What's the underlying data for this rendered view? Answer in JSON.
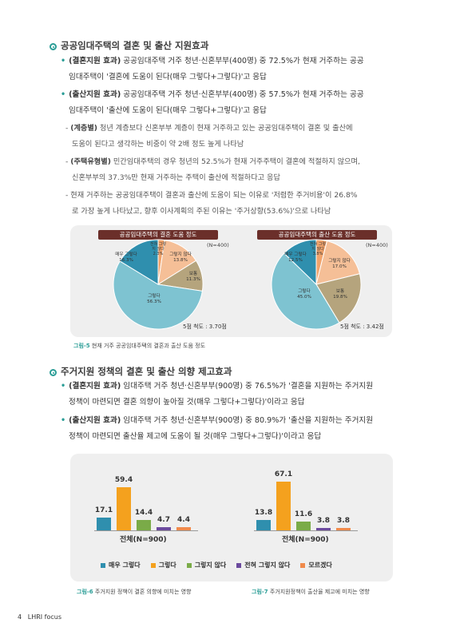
{
  "section1": {
    "title": "공공임대주택의 결혼 및 출산 지원효과",
    "bullets": [
      {
        "head": "(결혼지원 효과)",
        "lines": [
          " 공공임대주택 거주 청년·신혼부부(400명) 중 72.5%가 현재 거주하는 공공",
          "임대주택이 '결혼에 도움이 된다(매우 그렇다+그렇다)'고 응답"
        ]
      },
      {
        "head": "(출산지원 효과)",
        "lines": [
          " 공공임대주택 거주 청년·신혼부부(400명) 중 57.5%가 현재 거주하는 공공",
          "임대주택이 '출산에 도움이 된다(매우 그렇다+그렇다)'고 응답"
        ]
      }
    ],
    "dashes": [
      {
        "head": "(계층별)",
        "lines": [
          " 청년 계층보다 신혼부부 계층이 현재 거주하고 있는 공공임대주택이 결혼 및 출산에",
          "도움이 된다고 생각하는 비중이 약 2배 정도 높게 나타남"
        ]
      },
      {
        "head": "(주택유형별)",
        "lines": [
          " 민간임대주택의 경우 청년의 52.5%가 현재 거주주택이 결혼에 적절하지 않으며,",
          "신혼부부의 37.3%만 현재 거주하는 주택이 출산에 적절하다고 응답"
        ]
      },
      {
        "head": "",
        "lines": [
          "현재 거주하는 공공임대주택이 결혼과 출산에 도움이 되는 이유로 '저렴한 주거비용'이 26.8%",
          "로 가장 높게 나타났고, 향후 이사계획의 주된 이유는 '주거상향(53.6%)'으로 나타남"
        ]
      }
    ]
  },
  "figure5": {
    "caption_num": "그림-5",
    "caption_text": " 현재 거주 공공임대주택의 결혼과 출산 도움 정도",
    "pies": [
      {
        "banner": "공공임대주택의 결혼 도움 정도",
        "n": "(N=400)",
        "scale": "5점 척도 : 3.70점",
        "slices": [
          {
            "name": "전혀 그렇지 않다",
            "value": 2.3,
            "label": "2.3%",
            "color": "#f1a36b"
          },
          {
            "name": "그렇지 않다",
            "value": 13.8,
            "label": "13.8%",
            "color": "#f5bf97"
          },
          {
            "name": "보통",
            "value": 11.3,
            "label": "11.3%",
            "color": "#b5a47d"
          },
          {
            "name": "그렇다",
            "value": 56.3,
            "label": "56.3%",
            "color": "#7ec3d1"
          },
          {
            "name": "매우 그렇다",
            "value": 16.3,
            "label": "16.3%",
            "color": "#2f8fae"
          }
        ]
      },
      {
        "banner": "공공임대주택의 출산 도움 정도",
        "n": "(N=400)",
        "scale": "5점 척도 : 3.42점",
        "slices": [
          {
            "name": "전혀 그렇지 않다",
            "value": 3.8,
            "label": "3.8%",
            "color": "#f1a36b"
          },
          {
            "name": "그렇지 않다",
            "value": 17.0,
            "label": "17.0%",
            "color": "#f5bf97"
          },
          {
            "name": "보통",
            "value": 19.8,
            "label": "19.8%",
            "color": "#b5a47d"
          },
          {
            "name": "그렇다",
            "value": 45.0,
            "label": "45.0%",
            "color": "#7ec3d1"
          },
          {
            "name": "매우 그렇다",
            "value": 12.5,
            "label": "12.5%",
            "color": "#2f8fae"
          }
        ]
      }
    ]
  },
  "section2": {
    "title": "주거지원 정책의 결혼 및 출산 의향 제고효과",
    "bullets": [
      {
        "head": "(결혼지원 효과)",
        "lines": [
          " 임대주택 거주 청년·신혼부부(900명) 중 76.5%가 '결혼을 지원하는 주거지원",
          "정책이 마련되면 결혼 의향이 높아질 것(매우 그렇다+그렇다)'이라고 응답"
        ]
      },
      {
        "head": "(출산지원 효과)",
        "lines": [
          " 임대주택 거주 청년·신혼부부(900명) 중 80.9%가 '출산을 지원하는 주거지원",
          "정책이 마련되면 출산율 제고에 도움이 될 것(매우 그렇다+그렇다)'이라고 응답"
        ]
      }
    ]
  },
  "bars": {
    "legend": [
      {
        "name": "매우 그렇다",
        "color": "#2f8fae"
      },
      {
        "name": "그렇다",
        "color": "#f4a11e"
      },
      {
        "name": "그렇지 않다",
        "color": "#7aab48"
      },
      {
        "name": "전혀 그렇지 않다",
        "color": "#6b4a9e"
      },
      {
        "name": "모르겠다",
        "color": "#f08a4b"
      }
    ],
    "charts": [
      {
        "total": "전체(N=900)",
        "values": [
          17.1,
          59.4,
          14.4,
          4.7,
          4.4
        ],
        "labels": [
          "17.1",
          "59.4",
          "14.4",
          "4.7",
          "4.4"
        ]
      },
      {
        "total": "전체(N=900)",
        "values": [
          13.8,
          67.1,
          11.6,
          3.8,
          3.8
        ],
        "labels": [
          "13.8",
          "67.1",
          "11.6",
          "3.8",
          "3.8"
        ]
      }
    ],
    "captions": [
      {
        "num": "그림-6",
        "text": " 주거지원 정책이 결혼 의향에 미치는 영향"
      },
      {
        "num": "그림-7",
        "text": " 주거지원정책이 출산율 제고에 미치는 영향"
      }
    ]
  },
  "chart_data": [
    {
      "type": "pie",
      "title": "공공임대주택의 결혼 도움 정도",
      "categories": [
        "매우 그렇다",
        "그렇다",
        "보통",
        "그렇지 않다",
        "전혀 그렇지 않다"
      ],
      "values": [
        16.3,
        56.3,
        11.3,
        13.8,
        2.3
      ]
    },
    {
      "type": "pie",
      "title": "공공임대주택의 출산 도움 정도",
      "categories": [
        "매우 그렇다",
        "그렇다",
        "보통",
        "그렇지 않다",
        "전혀 그렇지 않다"
      ],
      "values": [
        12.5,
        45.0,
        19.8,
        17.0,
        3.8
      ]
    },
    {
      "type": "bar",
      "xlabel": "전체(N=900)",
      "categories": [
        "매우 그렇다",
        "그렇다",
        "그렇지 않다",
        "전혀 그렇지 않다",
        "모르겠다"
      ],
      "values": [
        17.1,
        59.4,
        14.4,
        4.7,
        4.4
      ]
    },
    {
      "type": "bar",
      "xlabel": "전체(N=900)",
      "categories": [
        "매우 그렇다",
        "그렇다",
        "그렇지 않다",
        "전혀 그렇지 않다",
        "모르겠다"
      ],
      "values": [
        13.8,
        67.1,
        11.6,
        3.8,
        3.8
      ]
    }
  ],
  "footer": {
    "page": "4",
    "pub": "LHRI focus"
  }
}
